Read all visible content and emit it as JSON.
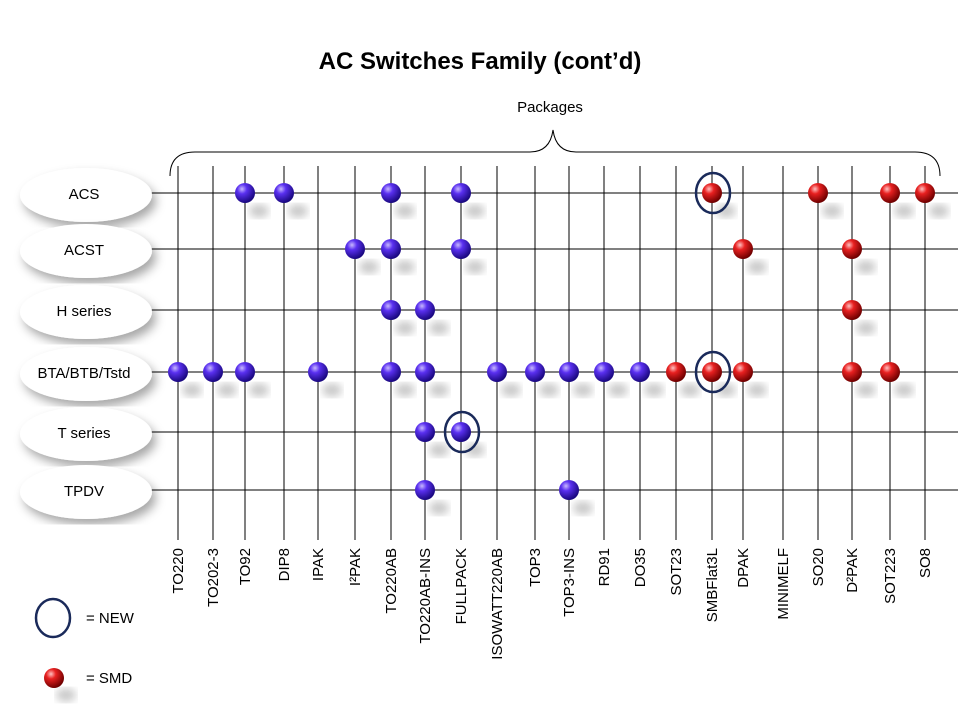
{
  "title": "AC Switches Family (cont’d)",
  "packages_label": "Packages",
  "packages": [
    "TO220",
    "TO202-3",
    "TO92",
    "DIP8",
    "IPAK",
    "I²PAK",
    "TO220AB",
    "TO220AB-INS",
    "FULLPACK",
    "ISOWATT220AB",
    "TOP3",
    "TOP3-INS",
    "RD91",
    "DO35",
    "SOT23",
    "SMBFlat3L",
    "DPAK",
    "MINIMELF",
    "SO20",
    "D²PAK",
    "SOT223",
    "SO8"
  ],
  "rows": [
    {
      "label": "ACS",
      "dots": [
        {
          "pkg": "TO92",
          "smd": false
        },
        {
          "pkg": "DIP8",
          "smd": false
        },
        {
          "pkg": "TO220AB",
          "smd": false
        },
        {
          "pkg": "FULLPACK",
          "smd": false
        },
        {
          "pkg": "SMBFlat3L",
          "smd": true,
          "new": true
        },
        {
          "pkg": "SO20",
          "smd": true
        },
        {
          "pkg": "SOT223",
          "smd": true
        },
        {
          "pkg": "SO8",
          "smd": true
        }
      ]
    },
    {
      "label": "ACST",
      "dots": [
        {
          "pkg": "I²PAK",
          "smd": false
        },
        {
          "pkg": "TO220AB",
          "smd": false
        },
        {
          "pkg": "FULLPACK",
          "smd": false
        },
        {
          "pkg": "DPAK",
          "smd": true
        },
        {
          "pkg": "D²PAK",
          "smd": true
        }
      ]
    },
    {
      "label": "H series",
      "dots": [
        {
          "pkg": "TO220AB",
          "smd": false
        },
        {
          "pkg": "TO220AB-INS",
          "smd": false
        },
        {
          "pkg": "D²PAK",
          "smd": true
        }
      ]
    },
    {
      "label": "BTA/BTB/Tstd",
      "dots": [
        {
          "pkg": "TO220",
          "smd": false
        },
        {
          "pkg": "TO202-3",
          "smd": false
        },
        {
          "pkg": "TO92",
          "smd": false
        },
        {
          "pkg": "IPAK",
          "smd": false
        },
        {
          "pkg": "TO220AB",
          "smd": false
        },
        {
          "pkg": "TO220AB-INS",
          "smd": false
        },
        {
          "pkg": "ISOWATT220AB",
          "smd": false
        },
        {
          "pkg": "TOP3",
          "smd": false
        },
        {
          "pkg": "TOP3-INS",
          "smd": false
        },
        {
          "pkg": "RD91",
          "smd": false
        },
        {
          "pkg": "DO35",
          "smd": false
        },
        {
          "pkg": "SOT23",
          "smd": true
        },
        {
          "pkg": "SMBFlat3L",
          "smd": true,
          "new": true
        },
        {
          "pkg": "DPAK",
          "smd": true
        },
        {
          "pkg": "D²PAK",
          "smd": true
        },
        {
          "pkg": "SOT223",
          "smd": true
        }
      ]
    },
    {
      "label": "T series",
      "dots": [
        {
          "pkg": "TO220AB-INS",
          "smd": false
        },
        {
          "pkg": "FULLPACK",
          "smd": false,
          "new": true
        }
      ]
    },
    {
      "label": "TPDV",
      "dots": [
        {
          "pkg": "TO220AB-INS",
          "smd": false
        },
        {
          "pkg": "TOP3-INS",
          "smd": false
        }
      ]
    }
  ],
  "legend": {
    "new": "= NEW",
    "smd": "= SMD"
  },
  "colors": {
    "through_hole": "#4a1ee8",
    "smd": "#e81818",
    "new_ring": "#1a2a5a"
  }
}
